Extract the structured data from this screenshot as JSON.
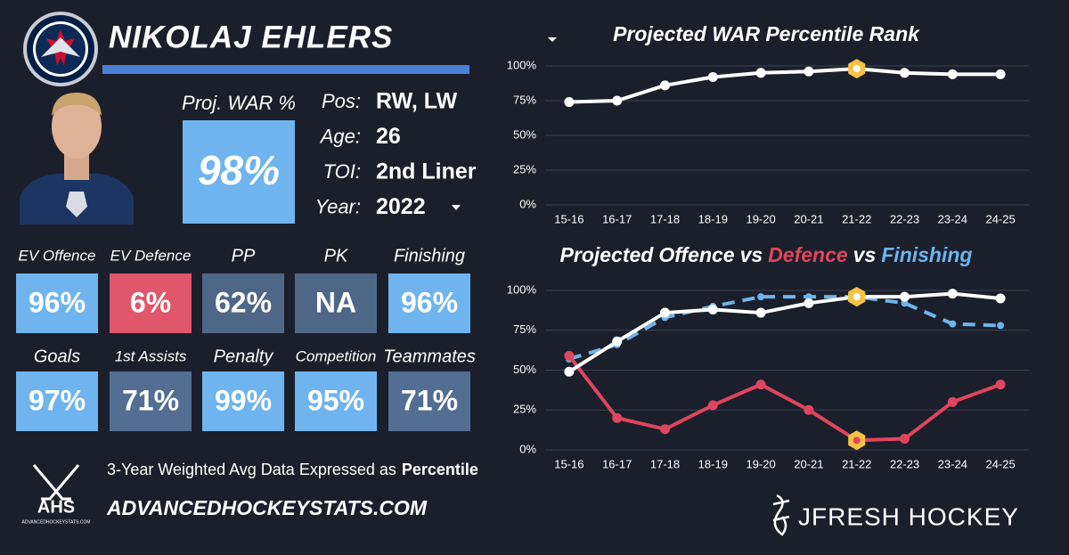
{
  "header": {
    "name": "NIKOLAJ EHLERS"
  },
  "war": {
    "label": "Proj. WAR %",
    "value": "98%",
    "color": "#6fb4ee"
  },
  "info": [
    {
      "label": "Pos:",
      "value": "RW, LW"
    },
    {
      "label": "Age:",
      "value": "26"
    },
    {
      "label": "TOI:",
      "value": "2nd Liner"
    },
    {
      "label": "Year:",
      "value": "2022"
    }
  ],
  "tiles": [
    [
      {
        "label": "EV Offence",
        "value": "96%",
        "color": "#6fb4ee"
      },
      {
        "label": "EV Defence",
        "value": "6%",
        "color": "#e0566b"
      },
      {
        "label": "PP",
        "value": "62%",
        "color": "#4f6787"
      },
      {
        "label": "PK",
        "value": "NA",
        "color": "#4f6787"
      },
      {
        "label": "Finishing",
        "value": "96%",
        "color": "#6fb4ee"
      }
    ],
    [
      {
        "label": "Goals",
        "value": "97%",
        "color": "#6fb4ee"
      },
      {
        "label": "1st Assists",
        "value": "71%",
        "color": "#526e92"
      },
      {
        "label": "Penalty",
        "value": "99%",
        "color": "#6fb4ee"
      },
      {
        "label": "Competition",
        "value": "95%",
        "color": "#6fb4ee"
      },
      {
        "label": "Teammates",
        "value": "71%",
        "color": "#526e92"
      }
    ]
  ],
  "footer": {
    "note": "3-Year Weighted Avg Data Expressed as",
    "note_bold": "Percentile",
    "site": "ADVANCEDHOCKEYSTATS.COM",
    "logo": "AHS",
    "logo_site": "ADVANCEDHOCKEYSTATS.COM",
    "brand": "JFRESH HOCKEY"
  },
  "chart_data": [
    {
      "type": "line",
      "title": "Projected WAR Percentile Rank",
      "categories": [
        "15-16",
        "16-17",
        "17-18",
        "18-19",
        "19-20",
        "20-21",
        "21-22",
        "22-23",
        "23-24",
        "24-25"
      ],
      "values": [
        74,
        75,
        86,
        92,
        95,
        96,
        98,
        95,
        94,
        94
      ],
      "color": "#ffffff",
      "ylim": [
        0,
        100
      ],
      "yticks": [
        {
          "value": 0,
          "label": "0%"
        },
        {
          "value": 25,
          "label": "25%"
        },
        {
          "value": 50,
          "label": "50%"
        },
        {
          "value": 75,
          "label": "75%"
        },
        {
          "value": 100,
          "label": "100%"
        }
      ],
      "grid": true,
      "highlight_index": 6,
      "highlight_color": "#f5c242"
    },
    {
      "type": "line",
      "title_prefix": "Projected",
      "title_joiner": "vs",
      "categories": [
        "15-16",
        "16-17",
        "17-18",
        "18-19",
        "19-20",
        "20-21",
        "21-22",
        "22-23",
        "23-24",
        "24-25"
      ],
      "series": [
        {
          "name": "Offence",
          "color": "#ffffff",
          "values": [
            49,
            68,
            86,
            88,
            86,
            92,
            96,
            96,
            98,
            95
          ]
        },
        {
          "name": "Defence",
          "color": "#e0455e",
          "values": [
            59,
            20,
            13,
            28,
            41,
            25,
            6,
            7,
            30,
            41
          ]
        },
        {
          "name": "Finishing",
          "color": "#6cb4ee",
          "dashed": true,
          "values": [
            57,
            66,
            83,
            90,
            96,
            96,
            96,
            92,
            79,
            78
          ]
        }
      ],
      "ylim": [
        0,
        100
      ],
      "yticks": [
        {
          "value": 0,
          "label": "0%"
        },
        {
          "value": 25,
          "label": "25%"
        },
        {
          "value": 50,
          "label": "50%"
        },
        {
          "value": 75,
          "label": "75%"
        },
        {
          "value": 100,
          "label": "100%"
        }
      ],
      "grid": true,
      "highlight_index": 6,
      "highlight_color": "#f5c242"
    }
  ]
}
